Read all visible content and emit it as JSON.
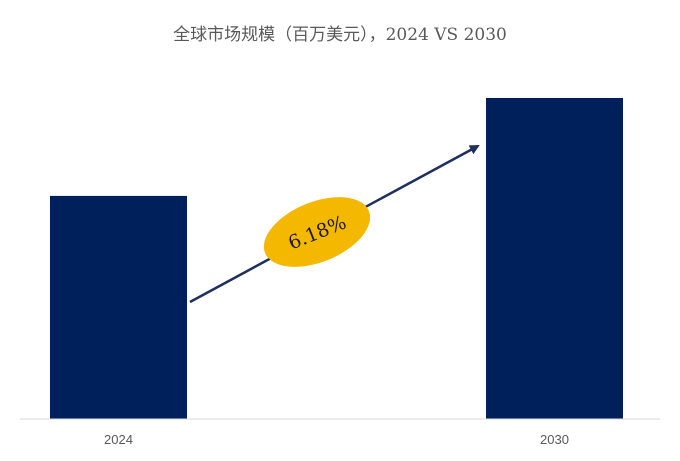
{
  "chart_data": {
    "type": "bar",
    "title": "全球市场规模（百万美元），2024 VS 2030",
    "xlabel": "",
    "ylabel": "",
    "categories": [
      "2024",
      "2030"
    ],
    "values": [
      69.5,
      100
    ],
    "ylim": [
      0,
      100
    ],
    "grid": false,
    "legend": "none",
    "annotation": {
      "label": "6.18%",
      "type": "growth-arrow",
      "from": "2024",
      "to": "2030"
    },
    "colors": {
      "bar": "#00205b",
      "arrow": "#1f2f5e",
      "ellipse": "#f5b800",
      "axis": "#d9d9d9",
      "text": "#595959"
    }
  }
}
